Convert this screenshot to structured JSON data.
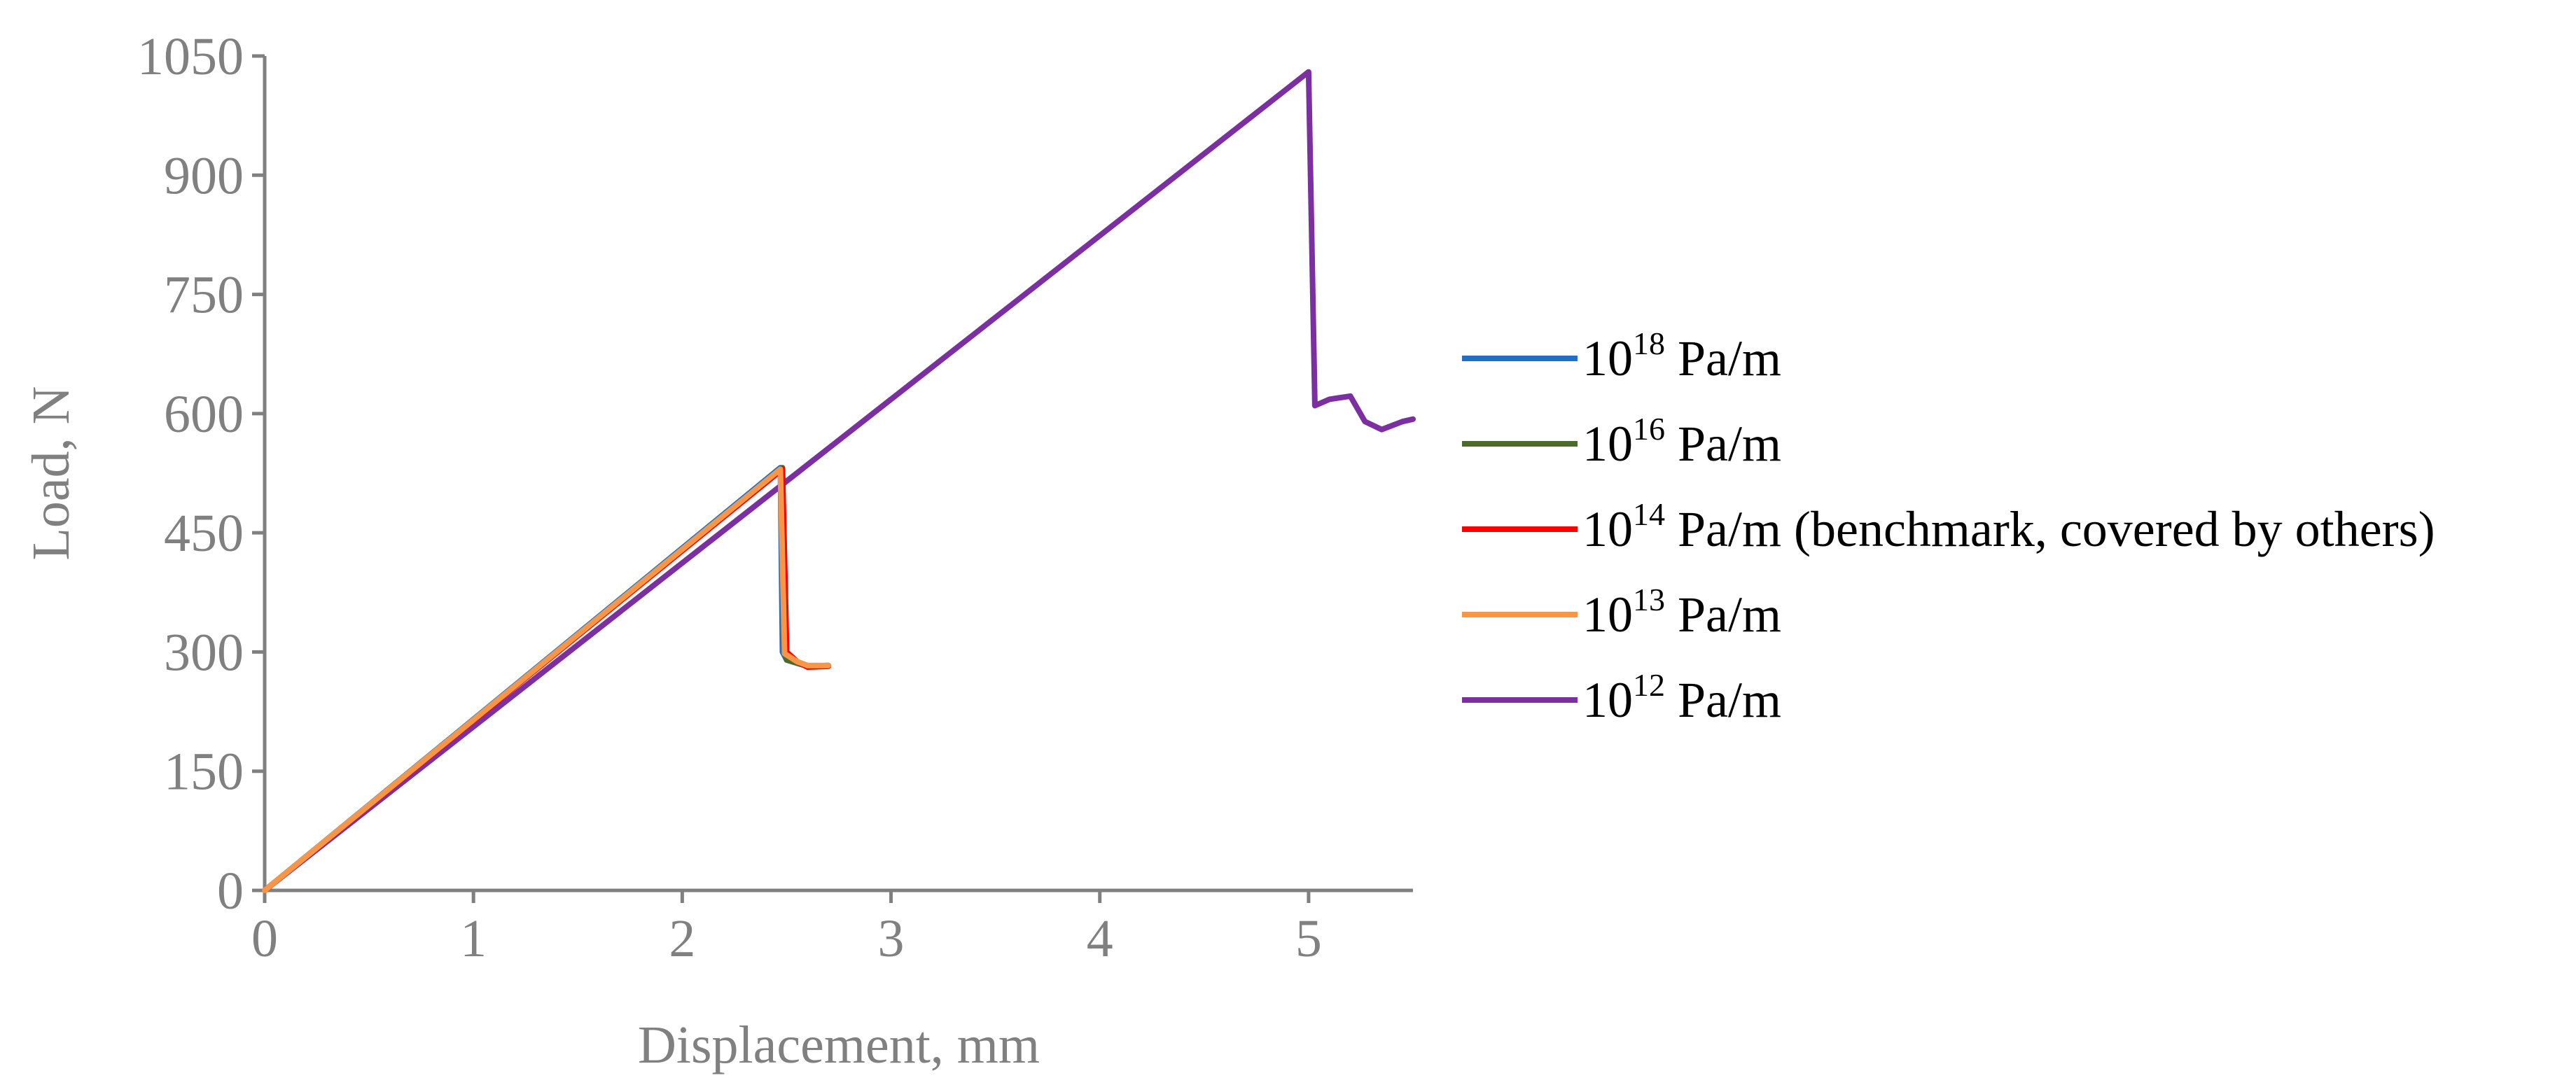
{
  "chart_data": {
    "type": "line",
    "title": "",
    "xlabel": "Displacement, mm",
    "ylabel": "Load, N",
    "xlim": [
      0,
      5.5
    ],
    "ylim": [
      0,
      1050
    ],
    "xticks": [
      0,
      1,
      2,
      3,
      4,
      5
    ],
    "yticks": [
      0,
      150,
      300,
      450,
      600,
      750,
      900,
      1050
    ],
    "xtick_labels": [
      "0",
      "1",
      "2",
      "3",
      "4",
      "5"
    ],
    "ytick_labels": [
      "0",
      "150",
      "300",
      "450",
      "600",
      "750",
      "900",
      "1050"
    ],
    "grid": false,
    "legend_position": "right",
    "series": [
      {
        "name": "10^18 Pa/m",
        "legend_base": "10",
        "legend_exp": "18",
        "legend_rest": " Pa/m",
        "color": "#1F6FC5",
        "x": [
          0,
          2.47,
          2.48,
          2.5,
          2.6,
          2.7
        ],
        "y": [
          0,
          532,
          300,
          290,
          282,
          283
        ]
      },
      {
        "name": "10^16 Pa/m",
        "legend_base": "10",
        "legend_exp": "16",
        "legend_rest": " Pa/m",
        "color": "#4A6B2A",
        "x": [
          0,
          2.48,
          2.49,
          2.5,
          2.6,
          2.7
        ],
        "y": [
          0,
          532,
          300,
          290,
          282,
          283
        ]
      },
      {
        "name": "10^14 Pa/m (benchmark, covered by others)",
        "legend_base": "10",
        "legend_exp": "14",
        "legend_rest": " Pa/m (benchmark, covered by others)",
        "color": "#FF0000",
        "x": [
          0,
          2.48,
          2.5,
          2.55,
          2.6,
          2.7
        ],
        "y": [
          0,
          530,
          300,
          288,
          281,
          282
        ]
      },
      {
        "name": "10^13 Pa/m",
        "legend_base": "10",
        "legend_exp": "13",
        "legend_rest": " Pa/m",
        "color": "#F79646",
        "x": [
          0,
          2.47,
          2.49,
          2.55,
          2.6,
          2.7
        ],
        "y": [
          0,
          530,
          298,
          288,
          283,
          283
        ]
      },
      {
        "name": "10^12 Pa/m",
        "legend_base": "10",
        "legend_exp": "12",
        "legend_rest": " Pa/m",
        "color": "#7B2FA0",
        "x": [
          0,
          5.0,
          5.03,
          5.1,
          5.2,
          5.27,
          5.35,
          5.45,
          5.5
        ],
        "y": [
          0,
          1030,
          610,
          618,
          622,
          590,
          580,
          590,
          593
        ]
      }
    ]
  }
}
